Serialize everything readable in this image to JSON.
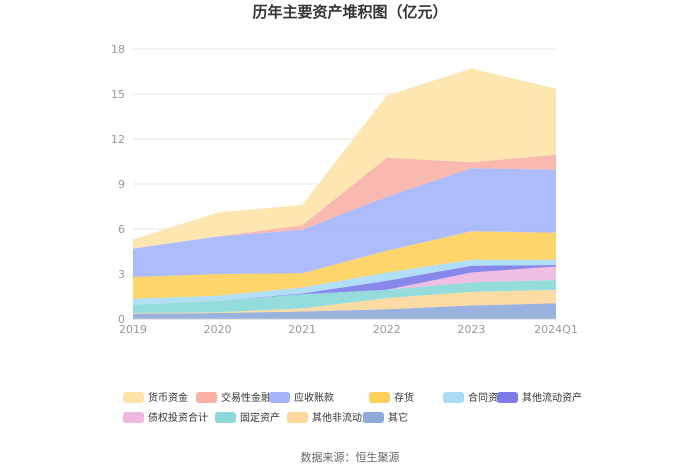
{
  "chart_data": {
    "type": "area",
    "stacked": true,
    "title": "历年主要资产堆积图（亿元）",
    "categories": [
      "2019",
      "2020",
      "2021",
      "2022",
      "2023",
      "2024Q1"
    ],
    "ylim": [
      0,
      18
    ],
    "yticks": [
      "0",
      "3",
      "6",
      "9",
      "12",
      "15",
      "18"
    ],
    "grid": true,
    "legend_position": "bottom",
    "series": [
      {
        "name": "其它",
        "color": "#8eaadb",
        "values": [
          0.35,
          0.4,
          0.5,
          0.65,
          0.9,
          1.05
        ]
      },
      {
        "name": "其他非流动资产",
        "color": "#fcd89a",
        "values": [
          0.05,
          0.05,
          0.2,
          0.75,
          0.9,
          0.9
        ]
      },
      {
        "name": "固定资产",
        "color": "#8ad8d8",
        "values": [
          0.55,
          0.75,
          0.95,
          0.55,
          0.65,
          0.65
        ]
      },
      {
        "name": "债权投资合计",
        "color": "#f0b8e0",
        "values": [
          0,
          0,
          0,
          0,
          0.65,
          0.9
        ]
      },
      {
        "name": "其他流动资产",
        "color": "#7b7bea",
        "values": [
          0,
          0,
          0.05,
          0.6,
          0.45,
          0.1
        ]
      },
      {
        "name": "合同资产",
        "color": "#a8dcf7",
        "values": [
          0.4,
          0.35,
          0.4,
          0.55,
          0.4,
          0.35
        ]
      },
      {
        "name": "存货",
        "color": "#fdd05a",
        "values": [
          1.45,
          1.45,
          0.95,
          1.45,
          1.9,
          1.8
        ]
      },
      {
        "name": "应收账款",
        "color": "#a4b5fb",
        "values": [
          1.9,
          2.5,
          2.9,
          3.6,
          4.2,
          4.2
        ]
      },
      {
        "name": "交易性金融资产",
        "color": "#f9b1a6",
        "values": [
          0,
          0,
          0.3,
          2.6,
          0.4,
          1.0
        ]
      },
      {
        "name": "货币资金",
        "color": "#fde3a7",
        "values": [
          0.6,
          1.6,
          1.35,
          4.15,
          6.25,
          4.4
        ]
      }
    ],
    "legend_order": [
      "货币资金",
      "交易性金融资产",
      "应收账款",
      "存货",
      "合同资产",
      "其他流动资产",
      "债权投资合计",
      "固定资产",
      "其他非流动资产",
      "其它"
    ]
  },
  "source": "数据来源：恒生聚源"
}
